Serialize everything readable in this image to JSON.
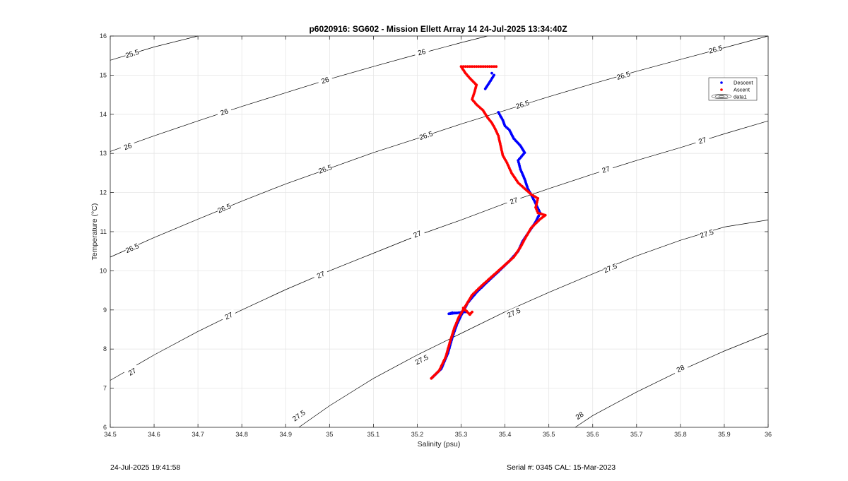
{
  "chart_data": {
    "type": "scatter",
    "title": "p6020916: SG602 - Mission Ellett Array 14 24-Jul-2025 13:34:40Z",
    "xlabel": "Salinity (psu)",
    "ylabel": "Temperature (°C)",
    "xlim": [
      34.5,
      36
    ],
    "ylim": [
      6,
      16
    ],
    "xticks": [
      "34.5",
      "34.6",
      "34.7",
      "34.8",
      "34.9",
      "35",
      "35.1",
      "35.2",
      "35.3",
      "35.4",
      "35.5",
      "35.6",
      "35.7",
      "35.8",
      "35.9",
      "36"
    ],
    "yticks": [
      "6",
      "7",
      "8",
      "9",
      "10",
      "11",
      "12",
      "13",
      "14",
      "15",
      "16"
    ],
    "grid": true,
    "legend": {
      "position": "top-right",
      "entries": [
        "Descent",
        "Ascent",
        "data1"
      ]
    },
    "colors": {
      "descent": "#0000ff",
      "ascent": "#ff0000",
      "contour": "#000000",
      "grid": "#e6e6e6"
    },
    "series": [
      {
        "name": "Descent",
        "points": [
          [
            35.234,
            7.27
          ],
          [
            35.255,
            7.5
          ],
          [
            35.27,
            7.9
          ],
          [
            35.28,
            8.3
          ],
          [
            35.29,
            8.62
          ],
          [
            35.3,
            8.86
          ],
          [
            35.315,
            9.18
          ],
          [
            35.335,
            9.45
          ],
          [
            35.36,
            9.72
          ],
          [
            35.385,
            9.98
          ],
          [
            35.41,
            10.25
          ],
          [
            35.43,
            10.5
          ],
          [
            35.44,
            10.75
          ],
          [
            35.455,
            11.0
          ],
          [
            35.47,
            11.25
          ],
          [
            35.48,
            11.48
          ],
          [
            35.47,
            11.72
          ],
          [
            35.46,
            11.94
          ],
          [
            35.452,
            12.1
          ],
          [
            35.445,
            12.34
          ],
          [
            35.435,
            12.6
          ],
          [
            35.43,
            12.82
          ],
          [
            35.445,
            13.02
          ],
          [
            35.435,
            13.2
          ],
          [
            35.42,
            13.38
          ],
          [
            35.41,
            13.6
          ],
          [
            35.4,
            13.7
          ],
          [
            35.395,
            13.85
          ],
          [
            35.385,
            14.05
          ],
          [
            35.37,
            15.05
          ],
          [
            35.375,
            15.0
          ],
          [
            35.365,
            14.82
          ],
          [
            35.355,
            14.65
          ],
          [
            35.29,
            8.92
          ],
          [
            35.28,
            8.93
          ],
          [
            35.272,
            8.9
          ],
          [
            35.31,
            8.95
          ]
        ]
      },
      {
        "name": "Ascent",
        "points": [
          [
            35.232,
            7.25
          ],
          [
            35.25,
            7.45
          ],
          [
            35.265,
            7.8
          ],
          [
            35.275,
            8.2
          ],
          [
            35.285,
            8.55
          ],
          [
            35.295,
            8.82
          ],
          [
            35.31,
            9.1
          ],
          [
            35.325,
            9.38
          ],
          [
            35.345,
            9.6
          ],
          [
            35.37,
            9.85
          ],
          [
            35.395,
            10.1
          ],
          [
            35.42,
            10.35
          ],
          [
            35.435,
            10.6
          ],
          [
            35.447,
            10.85
          ],
          [
            35.46,
            11.1
          ],
          [
            35.48,
            11.32
          ],
          [
            35.492,
            11.42
          ],
          [
            35.475,
            11.48
          ],
          [
            35.47,
            11.62
          ],
          [
            35.475,
            11.85
          ],
          [
            35.46,
            11.95
          ],
          [
            35.445,
            12.1
          ],
          [
            35.43,
            12.25
          ],
          [
            35.415,
            12.5
          ],
          [
            35.405,
            12.75
          ],
          [
            35.395,
            12.95
          ],
          [
            35.39,
            13.2
          ],
          [
            35.385,
            13.45
          ],
          [
            35.378,
            13.62
          ],
          [
            35.37,
            13.78
          ],
          [
            35.36,
            13.92
          ],
          [
            35.35,
            14.1
          ],
          [
            35.335,
            14.25
          ],
          [
            35.325,
            14.38
          ],
          [
            35.33,
            14.55
          ],
          [
            35.335,
            14.75
          ],
          [
            35.32,
            14.92
          ],
          [
            35.31,
            15.05
          ],
          [
            35.3,
            15.22
          ],
          [
            35.31,
            15.22
          ],
          [
            35.32,
            15.22
          ],
          [
            35.33,
            15.22
          ],
          [
            35.34,
            15.22
          ],
          [
            35.35,
            15.22
          ],
          [
            35.36,
            15.22
          ],
          [
            35.37,
            15.22
          ],
          [
            35.38,
            15.22
          ],
          [
            35.305,
            9.05
          ],
          [
            35.32,
            8.88
          ],
          [
            35.325,
            8.95
          ]
        ]
      },
      {
        "name": "data1",
        "contours": [
          {
            "level": "25.5",
            "points": [
              [
                34.5,
                15.38
              ],
              [
                34.6,
                15.72
              ],
              [
                34.7,
                16.0
              ]
            ],
            "labels": [
              [
                34.55,
                15.55
              ]
            ]
          },
          {
            "level": "26",
            "points": [
              [
                34.5,
                13.05
              ],
              [
                34.6,
                13.45
              ],
              [
                34.7,
                13.83
              ],
              [
                34.8,
                14.2
              ],
              [
                34.9,
                14.55
              ],
              [
                35.0,
                14.9
              ],
              [
                35.1,
                15.22
              ],
              [
                35.2,
                15.53
              ],
              [
                35.3,
                15.83
              ],
              [
                35.36,
                16.0
              ]
            ],
            "labels": [
              [
                34.54,
                13.18
              ],
              [
                34.76,
                14.06
              ],
              [
                34.99,
                14.87
              ],
              [
                35.21,
                15.59
              ]
            ]
          },
          {
            "level": "26.5",
            "points": [
              [
                34.5,
                10.35
              ],
              [
                34.6,
                10.85
              ],
              [
                34.7,
                11.32
              ],
              [
                34.8,
                11.78
              ],
              [
                34.9,
                12.22
              ],
              [
                35.0,
                12.62
              ],
              [
                35.1,
                13.02
              ],
              [
                35.2,
                13.38
              ],
              [
                35.3,
                13.75
              ],
              [
                35.4,
                14.1
              ],
              [
                35.5,
                14.45
              ],
              [
                35.6,
                14.78
              ],
              [
                35.7,
                15.1
              ],
              [
                35.8,
                15.4
              ],
              [
                35.9,
                15.7
              ],
              [
                36.0,
                16.0
              ]
            ],
            "labels": [
              [
                34.55,
                10.58
              ],
              [
                34.76,
                11.6
              ],
              [
                34.99,
                12.6
              ],
              [
                35.22,
                13.46
              ],
              [
                35.44,
                14.25
              ],
              [
                35.67,
                14.99
              ],
              [
                35.88,
                15.66
              ]
            ]
          },
          {
            "level": "27",
            "points": [
              [
                34.5,
                7.2
              ],
              [
                34.6,
                7.85
              ],
              [
                34.7,
                8.45
              ],
              [
                34.8,
                9.0
              ],
              [
                34.9,
                9.52
              ],
              [
                35.0,
                10.0
              ],
              [
                35.1,
                10.45
              ],
              [
                35.2,
                10.9
              ],
              [
                35.3,
                11.3
              ],
              [
                35.4,
                11.72
              ],
              [
                35.5,
                12.1
              ],
              [
                35.6,
                12.47
              ],
              [
                35.7,
                12.82
              ],
              [
                35.8,
                13.15
              ],
              [
                35.9,
                13.5
              ],
              [
                36.0,
                13.83
              ]
            ],
            "labels": [
              [
                34.55,
                7.42
              ],
              [
                34.77,
                8.85
              ],
              [
                34.98,
                9.9
              ],
              [
                35.2,
                10.94
              ],
              [
                35.42,
                11.79
              ],
              [
                35.63,
                12.59
              ],
              [
                35.85,
                13.33
              ]
            ]
          },
          {
            "level": "27.5",
            "points": [
              [
                34.93,
                6.0
              ],
              [
                35.0,
                6.55
              ],
              [
                35.1,
                7.25
              ],
              [
                35.2,
                7.85
              ],
              [
                35.3,
                8.4
              ],
              [
                35.4,
                8.95
              ],
              [
                35.5,
                9.45
              ],
              [
                35.6,
                9.92
              ],
              [
                35.7,
                10.38
              ],
              [
                35.8,
                10.78
              ],
              [
                35.9,
                11.12
              ],
              [
                36.0,
                11.3
              ]
            ],
            "labels": [
              [
                34.93,
                6.3
              ],
              [
                35.21,
                7.73
              ],
              [
                35.42,
                8.93
              ],
              [
                35.64,
                10.07
              ],
              [
                35.86,
                10.95
              ]
            ]
          },
          {
            "level": "28",
            "points": [
              [
                35.56,
                6.0
              ],
              [
                35.6,
                6.3
              ],
              [
                35.7,
                6.9
              ],
              [
                35.8,
                7.45
              ],
              [
                35.9,
                7.95
              ],
              [
                36.0,
                8.4
              ]
            ],
            "labels": [
              [
                35.57,
                6.3
              ],
              [
                35.8,
                7.5
              ]
            ]
          }
        ]
      }
    ]
  },
  "footer": {
    "timestamp": "24-Jul-2025 19:41:58",
    "serial": "Serial #: 0345  CAL: 15-Mar-2023"
  }
}
